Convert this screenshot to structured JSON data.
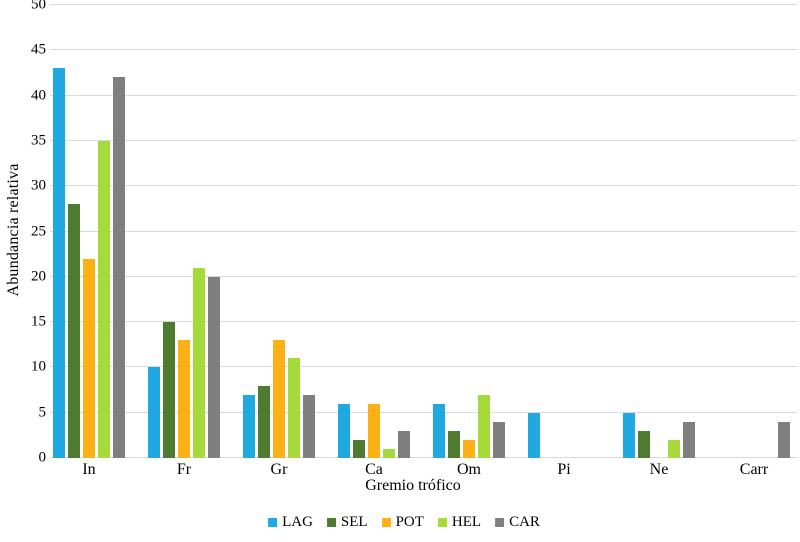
{
  "chart_data": {
    "type": "bar",
    "title": "",
    "xlabel": "Gremio trófico",
    "ylabel": "Abundancia relativa",
    "categories": [
      "In",
      "Fr",
      "Gr",
      "Ca",
      "Om",
      "Pi",
      "Ne",
      "Carr"
    ],
    "series": [
      {
        "name": "LAG",
        "color": "#20A8E1",
        "values": [
          43,
          10,
          7,
          6,
          6,
          5,
          5,
          0
        ]
      },
      {
        "name": "SEL",
        "color": "#4E7B2F",
        "values": [
          28,
          15,
          8,
          2,
          3,
          0,
          3,
          0
        ]
      },
      {
        "name": "POT",
        "color": "#FBB116",
        "values": [
          22,
          13,
          13,
          6,
          2,
          0,
          0,
          0
        ]
      },
      {
        "name": "HEL",
        "color": "#A6DA3A",
        "values": [
          35,
          21,
          11,
          1,
          7,
          0,
          2,
          0
        ]
      },
      {
        "name": "CAR",
        "color": "#7F7F7F",
        "values": [
          42,
          20,
          7,
          3,
          4,
          0,
          4,
          4
        ]
      }
    ],
    "ylim": [
      0,
      50
    ],
    "yticks": [
      0,
      5,
      10,
      15,
      20,
      25,
      30,
      35,
      40,
      45,
      50
    ],
    "grid": "horizontal",
    "gridline_color": "#D9D9D9",
    "legend_position": "bottom",
    "legend_labels": [
      "LAG",
      "SEL",
      "POT",
      "HEL",
      "CAR"
    ],
    "background": "#FFFFFF",
    "text_color": "#000000"
  }
}
